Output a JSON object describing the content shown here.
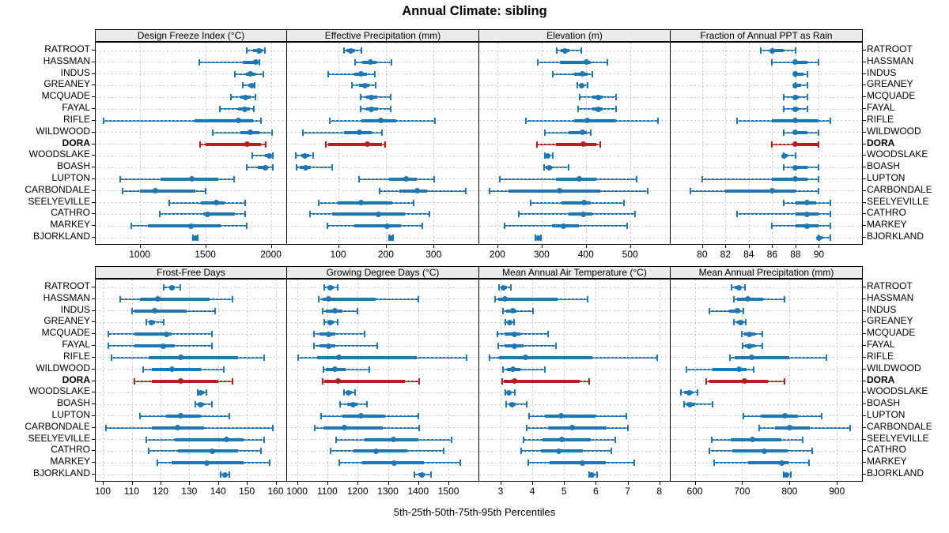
{
  "title": "Annual Climate: sibling",
  "xlabel": "5th-25th-50th-75th-95th Percentiles",
  "colors": {
    "series_blue": "#1f77b4",
    "highlight_red": "#b22222",
    "strip_bg": "#ebebeb",
    "grid_gray": "#c6c6c6",
    "border_black": "#000000"
  },
  "chart_data": {
    "type": "dot-whisker-trellis",
    "percentiles": [
      "5th",
      "25th",
      "50th",
      "75th",
      "95th"
    ],
    "legend_position": "none",
    "grid": "dotted",
    "layout": {
      "rows": 2,
      "cols": 4
    },
    "sites": [
      "RATROOT",
      "HASSMAN",
      "INDUS",
      "GREANEY",
      "MCQUADE",
      "FAYAL",
      "RIFLE",
      "WILDWOOD",
      "DORA",
      "WOODSLAKE",
      "BOASH",
      "LUPTON",
      "CARBONDALE",
      "SEELYEVILLE",
      "CATHRO",
      "MARKEY",
      "BJORKLAND"
    ],
    "highlight_site": "DORA",
    "panels": [
      {
        "title": "Design Freeze Index (°C)",
        "grid_row": 0,
        "grid_col": 0,
        "domain": [
          665,
          2117
        ],
        "ticks": [
          1000,
          1500,
          2000
        ],
        "tick_labels": [
          "1000",
          "1500",
          "2000"
        ],
        "series": [
          [
            1815,
            1865,
            1910,
            1935,
            1955
          ],
          [
            1455,
            1785,
            1885,
            1900,
            1915
          ],
          [
            1725,
            1810,
            1845,
            1885,
            1945
          ],
          [
            1785,
            1825,
            1855,
            1865,
            1875
          ],
          [
            1695,
            1765,
            1805,
            1845,
            1880
          ],
          [
            1610,
            1750,
            1800,
            1840,
            1870
          ],
          [
            725,
            1420,
            1750,
            1865,
            1925
          ],
          [
            1555,
            1770,
            1845,
            1915,
            2010
          ],
          [
            1460,
            1500,
            1820,
            1925,
            1960
          ],
          [
            1860,
            1955,
            1990,
            2005,
            2015
          ],
          [
            1815,
            1900,
            1955,
            1980,
            2015
          ],
          [
            850,
            1160,
            1400,
            1600,
            1720
          ],
          [
            870,
            1000,
            1120,
            1425,
            1500
          ],
          [
            1225,
            1465,
            1585,
            1650,
            1805
          ],
          [
            1155,
            1485,
            1520,
            1725,
            1805
          ],
          [
            935,
            1065,
            1390,
            1615,
            1815
          ],
          [
            1405,
            1415,
            1425,
            1432,
            1440
          ]
        ]
      },
      {
        "title": "Effective Precipitation (mm)",
        "grid_row": 0,
        "grid_col": 1,
        "domain": [
          -7,
          394
        ],
        "ticks": [
          100,
          200,
          300
        ],
        "tick_labels": [
          "100",
          "200",
          "300"
        ],
        "series": [
          [
            112,
            118,
            127,
            135,
            148
          ],
          [
            136,
            151,
            167,
            181,
            212
          ],
          [
            79,
            134,
            148,
            160,
            177
          ],
          [
            129,
            144,
            156,
            166,
            178
          ],
          [
            147,
            158,
            170,
            182,
            210
          ],
          [
            147,
            159,
            170,
            184,
            210
          ],
          [
            82,
            149,
            189,
            221,
            303
          ],
          [
            26,
            112,
            145,
            171,
            192
          ],
          [
            74,
            79,
            162,
            192,
            198
          ],
          [
            12,
            22,
            31,
            40,
            48
          ],
          [
            13,
            20,
            32,
            42,
            88
          ],
          [
            143,
            207,
            242,
            265,
            302
          ],
          [
            187,
            229,
            265,
            287,
            368
          ],
          [
            59,
            99,
            148,
            214,
            258
          ],
          [
            41,
            88,
            184,
            240,
            291
          ],
          [
            77,
            134,
            203,
            231,
            277
          ],
          [
            207,
            209,
            211,
            213,
            215
          ]
        ]
      },
      {
        "title": "Elevation (m)",
        "grid_row": 0,
        "grid_col": 2,
        "domain": [
          159,
          590
        ],
        "ticks": [
          200,
          300,
          400,
          500
        ],
        "tick_labels": [
          "200",
          "300",
          "400",
          "500"
        ],
        "series": [
          [
            334,
            343,
            353,
            363,
            390
          ],
          [
            292,
            341,
            402,
            411,
            448
          ],
          [
            326,
            374,
            393,
            404,
            415
          ],
          [
            381,
            386,
            390,
            395,
            404
          ],
          [
            386,
            415,
            429,
            438,
            469
          ],
          [
            383,
            414,
            428,
            438,
            468
          ],
          [
            264,
            373,
            404,
            468,
            563
          ],
          [
            307,
            361,
            393,
            402,
            412
          ],
          [
            289,
            332,
            395,
            424,
            432
          ],
          [
            307,
            311,
            314,
            319,
            326
          ],
          [
            305,
            310,
            318,
            323,
            361
          ],
          [
            206,
            333,
            386,
            424,
            515
          ],
          [
            182,
            226,
            340,
            432,
            540
          ],
          [
            276,
            345,
            396,
            411,
            486
          ],
          [
            249,
            361,
            395,
            414,
            511
          ],
          [
            216,
            323,
            350,
            385,
            493
          ],
          [
            286,
            289,
            292,
            294,
            298
          ]
        ]
      },
      {
        "title": "Fraction of Annual PPT as Rain",
        "grid_row": 0,
        "grid_col": 3,
        "domain": [
          77.3,
          93.7
        ],
        "ticks": [
          80,
          82,
          84,
          86,
          88,
          90
        ],
        "tick_labels": [
          "80",
          "82",
          "84",
          "86",
          "88",
          "90"
        ],
        "series": [
          [
            85,
            86,
            86,
            87,
            88
          ],
          [
            86,
            88,
            88,
            89,
            90
          ],
          [
            88,
            88,
            88,
            88.7,
            89
          ],
          [
            88,
            88,
            88,
            88.5,
            89
          ],
          [
            87,
            87.8,
            88,
            88.3,
            89
          ],
          [
            87,
            87.8,
            88,
            88.3,
            89
          ],
          [
            83,
            86,
            88,
            90,
            91
          ],
          [
            87,
            88,
            88,
            89,
            90
          ],
          [
            86,
            88,
            88,
            90,
            90
          ],
          [
            87,
            87,
            87,
            87.3,
            88
          ],
          [
            87,
            88,
            88,
            89,
            90
          ],
          [
            80,
            86,
            88,
            89,
            90
          ],
          [
            79,
            82,
            86,
            88,
            90
          ],
          [
            87,
            88,
            89,
            89.8,
            91
          ],
          [
            83,
            88,
            89,
            90,
            91
          ],
          [
            86,
            88,
            89,
            90,
            91
          ],
          [
            90,
            90,
            90,
            90.3,
            91
          ]
        ]
      },
      {
        "title": "Frost-Free Days",
        "grid_row": 1,
        "grid_col": 0,
        "domain": [
          97.5,
          163.7
        ],
        "ticks": [
          100,
          110,
          120,
          130,
          140,
          150,
          160
        ],
        "tick_labels": [
          "100",
          "110",
          "120",
          "130",
          "140",
          "150",
          "160"
        ],
        "series": [
          [
            121,
            123,
            124,
            125,
            127
          ],
          [
            106,
            113,
            119,
            137,
            145
          ],
          [
            110,
            111,
            118,
            129,
            139
          ],
          [
            115,
            116,
            117,
            118,
            121
          ],
          [
            102,
            111,
            122,
            124,
            138
          ],
          [
            102,
            111,
            121,
            125,
            138
          ],
          [
            103,
            116,
            127,
            147,
            156
          ],
          [
            114,
            117,
            124,
            134,
            142
          ],
          [
            111,
            117,
            127,
            140,
            145
          ],
          [
            133,
            134,
            134,
            135,
            136
          ],
          [
            132,
            133,
            134,
            135,
            138
          ],
          [
            113,
            122,
            127,
            134,
            144
          ],
          [
            101,
            117,
            126,
            135,
            159
          ],
          [
            115,
            125,
            143,
            149,
            156
          ],
          [
            116,
            126,
            138,
            147,
            155
          ],
          [
            119,
            124,
            136,
            149,
            158
          ],
          [
            141,
            142,
            142.5,
            143,
            144
          ]
        ]
      },
      {
        "title": "Growing Degree Days (°C)",
        "grid_row": 1,
        "grid_col": 1,
        "domain": [
          967,
          1599
        ],
        "ticks": [
          1000,
          1100,
          1200,
          1300,
          1400,
          1500
        ],
        "tick_labels": [
          "1000",
          "1100",
          "1200",
          "1300",
          "1400",
          "1500"
        ],
        "series": [
          [
            1090,
            1100,
            1110,
            1120,
            1135
          ],
          [
            1072,
            1085,
            1105,
            1260,
            1400
          ],
          [
            1085,
            1095,
            1125,
            1150,
            1200
          ],
          [
            1090,
            1100,
            1110,
            1120,
            1133
          ],
          [
            1057,
            1075,
            1104,
            1126,
            1222
          ],
          [
            1057,
            1075,
            1104,
            1126,
            1265
          ],
          [
            1004,
            1065,
            1139,
            1396,
            1559
          ],
          [
            1087,
            1095,
            1126,
            1160,
            1239
          ],
          [
            1084,
            1090,
            1135,
            1357,
            1404
          ],
          [
            1154,
            1162,
            1170,
            1180,
            1191
          ],
          [
            1142,
            1165,
            1185,
            1200,
            1230
          ],
          [
            1080,
            1150,
            1210,
            1290,
            1400
          ],
          [
            1058,
            1087,
            1157,
            1283,
            1404
          ],
          [
            1130,
            1222,
            1317,
            1400,
            1510
          ],
          [
            1110,
            1187,
            1261,
            1365,
            1483
          ],
          [
            1140,
            1215,
            1320,
            1420,
            1540
          ],
          [
            1387,
            1400,
            1411,
            1422,
            1443
          ]
        ]
      },
      {
        "title": "Mean Annual Air Temperature (°C)",
        "grid_row": 1,
        "grid_col": 2,
        "domain": [
          2.33,
          8.33
        ],
        "ticks": [
          3,
          4,
          5,
          6,
          7,
          8
        ],
        "tick_labels": [
          "3",
          "4",
          "5",
          "6",
          "7",
          "8"
        ],
        "series": [
          [
            2.95,
            3.02,
            3.1,
            3.2,
            3.33
          ],
          [
            2.83,
            2.92,
            3.15,
            4.8,
            5.73
          ],
          [
            3.08,
            3.17,
            3.4,
            3.5,
            4.03
          ],
          [
            3.15,
            3.24,
            3.3,
            3.36,
            3.42
          ],
          [
            2.9,
            3.12,
            3.44,
            3.62,
            4.49
          ],
          [
            2.92,
            3.12,
            3.45,
            3.73,
            4.75
          ],
          [
            2.65,
            2.96,
            3.79,
            5.9,
            7.94
          ],
          [
            3.08,
            3.2,
            3.4,
            3.62,
            4.39
          ],
          [
            3.04,
            3.1,
            3.45,
            5.48,
            5.79
          ],
          [
            3.15,
            3.21,
            3.26,
            3.31,
            3.44
          ],
          [
            3.18,
            3.28,
            3.37,
            3.47,
            3.83
          ],
          [
            3.91,
            4.39,
            4.9,
            5.99,
            6.95
          ],
          [
            3.83,
            4.49,
            5.25,
            6.35,
            7.02
          ],
          [
            3.73,
            4.32,
            4.92,
            5.85,
            6.6
          ],
          [
            3.66,
            4.28,
            4.83,
            5.58,
            6.49
          ],
          [
            3.88,
            4.55,
            5.58,
            6.32,
            7.2
          ],
          [
            5.8,
            5.85,
            5.88,
            5.93,
            6.04
          ]
        ]
      },
      {
        "title": "Mean Annual Precipitation (mm)",
        "grid_row": 1,
        "grid_col": 3,
        "domain": [
          549,
          953
        ],
        "ticks": [
          600,
          700,
          800,
          900
        ],
        "tick_labels": [
          "600",
          "700",
          "800",
          "900"
        ],
        "series": [
          [
            678,
            685,
            693,
            698,
            706
          ],
          [
            682,
            690,
            711,
            745,
            789
          ],
          [
            630,
            672,
            690,
            696,
            702
          ],
          [
            683,
            690,
            697,
            702,
            708
          ],
          [
            700,
            705,
            715,
            728,
            743
          ],
          [
            701,
            706,
            715,
            727,
            743
          ],
          [
            674,
            685,
            720,
            800,
            878
          ],
          [
            583,
            637,
            694,
            709,
            724
          ],
          [
            624,
            630,
            705,
            755,
            790
          ],
          [
            570,
            578,
            588,
            595,
            605
          ],
          [
            578,
            583,
            590,
            600,
            637
          ],
          [
            702,
            740,
            790,
            818,
            868
          ],
          [
            736,
            770,
            800,
            843,
            928
          ],
          [
            636,
            676,
            722,
            782,
            828
          ],
          [
            630,
            680,
            747,
            796,
            847
          ],
          [
            641,
            712,
            783,
            798,
            841
          ],
          [
            787,
            790,
            794,
            798,
            802
          ]
        ]
      }
    ]
  }
}
